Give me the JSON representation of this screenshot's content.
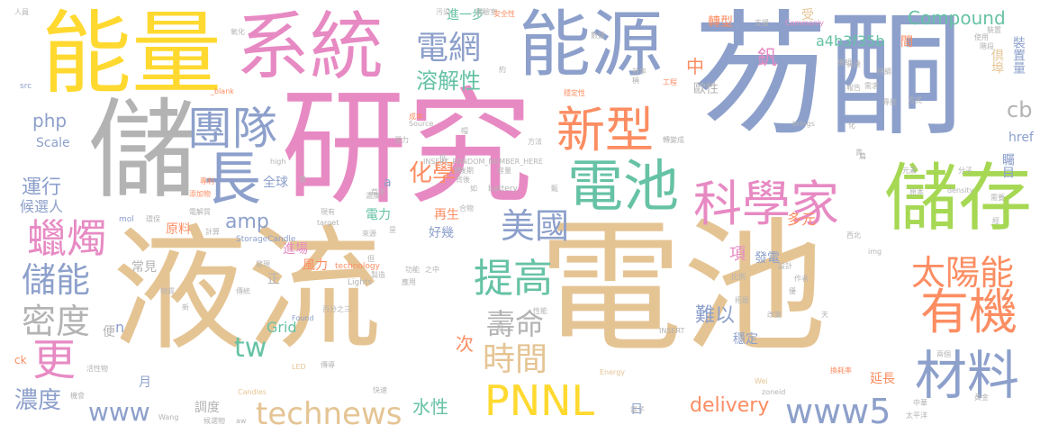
{
  "colors": {
    "tan": "#e5c494",
    "pink": "#e78ac3",
    "blue": "#8da0cb",
    "gray": "#b3b3b3",
    "yellow": "#ffd92f",
    "green": "#a6d854",
    "teal": "#66c2a5",
    "orange": "#fc8d62"
  },
  "words": {
    "ye_liu": "液流",
    "dian_chi_big": "電池",
    "yan_jiu": "研究",
    "tong": "芴酮",
    "chu": "儲",
    "neng_liang": "能量",
    "xi_tong": "系統",
    "neng_yuan": "能源",
    "chu_cun": "儲存",
    "dian_chi_mid": "電池",
    "ke_xue_jia": "科學家",
    "xin_xing": "新型",
    "tuan_dui": "團隊",
    "dian_wang": "電網",
    "zhang": "長",
    "you_ji": "有機",
    "cai_liao": "材料",
    "tai_yang_neng": "太陽能",
    "mei_guo": "美國",
    "ti_gao": "提高",
    "pnnl": "PNNL",
    "technews": "technews",
    "www5": "www5",
    "la_zhu": "蠟燭",
    "chu_neng": "儲能",
    "mi_du": "密度",
    "geng": "更",
    "shou_ming": "壽命",
    "shi_jian": "時間",
    "rong_jie_xing": "溶解性",
    "hua_xue": "化學",
    "compound": "Compound",
    "a4b3f35b": "a4b3f35b",
    "php": "php",
    "amp": "amp",
    "tw": "tw",
    "www": "www",
    "delivery": "delivery",
    "nong_du": "濃度",
    "yun_xing": "運行",
    "scale": "Scale",
    "cb": "cb",
    "shui_xing": "水性",
    "nan_yi": "難以",
    "zhong": "中",
    "fan": "釩",
    "zhuan_xing": "轉型",
    "shou": "受",
    "jian": "間",
    "href": "href",
    "zhuang_zhi_liang": "裝置量",
    "ju_le": "倶埠",
    "zhu_mu": "矚目",
    "xiang": "項",
    "dian_li": "電力",
    "zai_sheng": "再生",
    "hao_ji": "好幾",
    "quan_qiu": "全球",
    "hou_xuan_ren": "候選人",
    "yuan_liao": "原料",
    "jin_chang": "進場",
    "chang_jian": "常見",
    "feng_li": "風力",
    "grid": "Grid",
    "ci": "次",
    "fa_dian": "發電",
    "duo_yuan": "多元",
    "wen_ding": "穩定",
    "yan_chang": "延長",
    "yan_chang2": "延長",
    "jin_yi_bu": "進一步",
    "ou_xing": "歐性",
    "zheng": "正",
    "bian": "便",
    "tiao_du": "調度",
    "ri": "日",
    "yue": "月",
    "n": "n",
    "a": "a",
    "ck": "ck",
    "src": "src",
    "mol": "mol",
    "high": "high",
    "storage_candle": "StorageCandle",
    "technology": "technology",
    "lights": "Lights",
    "battery": "battery",
    "brings": "brings",
    "density": "density",
    "commonly": "Commonly",
    "source": "Source",
    "insert_random": "INSERT_RANDOM_NUMBER_HERE",
    "insert": "INSERT",
    "blank": "_blank",
    "target": "target",
    "img": "img",
    "found": "Found",
    "candles": "Candles",
    "led": "LED",
    "energy": "Energy",
    "wei": "Wei",
    "wang": "Wang",
    "zoneid": "zoneid",
    "aw": "aw",
    "xiu": "xiu",
    "s_ren_yu": "人員",
    "s_yang_hua": "氧化",
    "s_rong_liang": "容量",
    "s_gong_cheng": "工程",
    "s_cheng_ben": "成本",
    "s_wu_ran": "污染",
    "s_dian_jie_zhi": "電解質",
    "s_shi_yan_shi": "實驗室",
    "s_an_quan_xing": "安全性",
    "s_shu_ju": "數據",
    "s_yue": "約",
    "s_xu_qiu": "需求",
    "s_fang_shi": "方式",
    "s_xun_zhao": "尋找",
    "s_xiao_lv": "效率",
    "s_wen_ding_xing": "穩定性",
    "s_zhuan_bian": "轉變成",
    "s_hou_qi": "後期",
    "s_ji_zu": "機組",
    "s_zhi_chi": "支援",
    "s_jie_duan": "階段",
    "s_shi_yong": "使用",
    "s_she_ji": "設計",
    "s_zuo_zhe": "作者",
    "s_bi_li": "比例",
    "s_fen_zi": "分子",
    "s_yuan_su": "元素",
    "s_gai_bian": "改變",
    "s_tai_ping_yang": "太平洋",
    "s_zhong_hua": "中華",
    "s_huan_gao": "換耗率",
    "s_bai_fen_zhi_san": "百分之三",
    "s_xian_you": "現有",
    "s_tian_jia_wu": "添加物",
    "s_zhuan_li": "專利",
    "s_huan_bao": "環保",
    "s_lai_yuan": "來源",
    "s_ji_suan": "計算",
    "s_chuan_tong": "傳統",
    "s_xing_neng": "性能",
    "s_qian_li": "潛力",
    "s_huo_xing_wu": "活性物",
    "s_kuai_su": "快速",
    "s_ji_hui": "機會",
    "s_hou_xuan_wu": "候選物",
    "s_dian_zi": "電子",
    "s_xi_bei": "西北",
    "s_shou_ci": "首次",
    "s_zhuang_zhi": "裝置",
    "s_wu_zhi": "物質",
    "s_liang_ge": "兩個",
    "s_pian": "篇",
    "s_huang_jin": "黃金",
    "s_tian": "天",
    "s_cheng": "稱",
    "s_you": "優",
    "s_tuo_zhan": "拓展",
    "s_yuan_ben": "原本",
    "s_xu_yao": "需要",
    "s_fang_fa": "方法",
    "s_zhi_zao": "製造",
    "s_gong_neng": "功能",
    "s_dan": "但",
    "s_zhi_zhong": "之中",
    "s_duan": "段",
    "s_ying_yong": "應用",
    "s_li": "歷",
    "s_he_wu": "合物",
    "s_bei_jing": "背後",
    "s_dan2": "單",
    "s_hua": "化",
    "s_gui": "貴",
    "s_xin": "新",
    "s_jing": "經",
    "s_ru": "如",
    "s_mao": "帽",
    "s_chuan_dong": "傳導",
    "s_ri": "昰",
    "s_di": "低",
    "s_zhen": "甄",
    "s_nong_du": "濃度",
    "s_fa_xian": "發現",
    "s_bao_gao": "報告",
    "s_chang_qi": "長達",
    "s_chi_xu": "持續"
  }
}
